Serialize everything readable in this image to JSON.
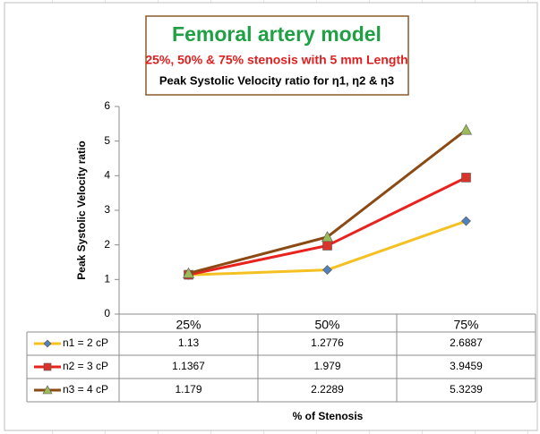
{
  "chart_data": {
    "type": "line",
    "title": "Femoral artery model",
    "subtitle": "25%, 50% & 75% stenosis with 5 mm Length",
    "subtitle2": "Peak Systolic Velocity ratio for η1, η2 & η3",
    "y_label": "Peak Systolic Velocity ratio",
    "x_label": "% of Stenosis",
    "categories": [
      "25%",
      "50%",
      "75%"
    ],
    "series": [
      {
        "name": "n1 = 2 cP",
        "color": "#f5c022",
        "marker": "diamond",
        "marker_color": "#4f81bd",
        "values": [
          1.13,
          1.2776,
          2.6887
        ]
      },
      {
        "name": "n2 = 3 cP",
        "color": "#e8231e",
        "marker": "square",
        "marker_color": "#d9342b",
        "values": [
          1.1367,
          1.979,
          3.9459
        ]
      },
      {
        "name": "n3 = 4 cP",
        "color": "#8b4a14",
        "marker": "triangle",
        "marker_color": "#9bbb59",
        "values": [
          1.179,
          2.2289,
          5.3239
        ]
      }
    ],
    "ylim": [
      0,
      6
    ],
    "yticks": [
      0,
      1,
      2,
      3,
      4,
      5,
      6
    ],
    "grid": false,
    "data_table": true
  }
}
